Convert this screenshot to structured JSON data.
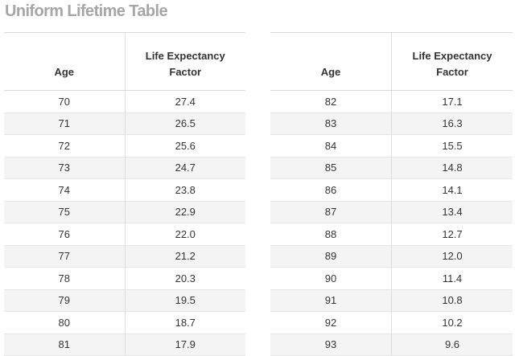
{
  "title": "Uniform Lifetime Table",
  "tables": [
    {
      "headers": [
        "Age",
        "Life Expectancy Factor"
      ],
      "rows": [
        [
          "70",
          "27.4"
        ],
        [
          "71",
          "26.5"
        ],
        [
          "72",
          "25.6"
        ],
        [
          "73",
          "24.7"
        ],
        [
          "74",
          "23.8"
        ],
        [
          "75",
          "22.9"
        ],
        [
          "76",
          "22.0"
        ],
        [
          "77",
          "21.2"
        ],
        [
          "78",
          "20.3"
        ],
        [
          "79",
          "19.5"
        ],
        [
          "80",
          "18.7"
        ],
        [
          "81",
          "17.9"
        ]
      ]
    },
    {
      "headers": [
        "Age",
        "Life Expectancy Factor"
      ],
      "rows": [
        [
          "82",
          "17.1"
        ],
        [
          "83",
          "16.3"
        ],
        [
          "84",
          "15.5"
        ],
        [
          "85",
          "14.8"
        ],
        [
          "86",
          "14.1"
        ],
        [
          "87",
          "13.4"
        ],
        [
          "88",
          "12.7"
        ],
        [
          "89",
          "12.0"
        ],
        [
          "90",
          "11.4"
        ],
        [
          "91",
          "10.8"
        ],
        [
          "92",
          "10.2"
        ],
        [
          "93",
          "9.6"
        ]
      ]
    }
  ]
}
